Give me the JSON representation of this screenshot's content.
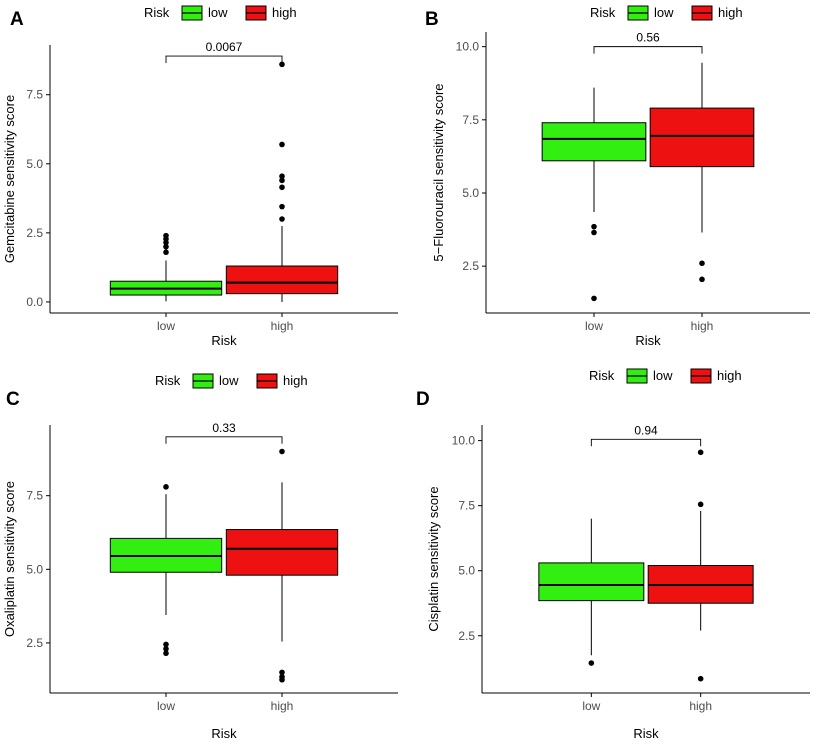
{
  "legend": {
    "title": "Risk",
    "items": [
      {
        "label": "low",
        "color": "#33ee11"
      },
      {
        "label": "high",
        "color": "#ee1111"
      }
    ]
  },
  "chart_data": [
    {
      "panel": "A",
      "type": "boxplot",
      "xlabel": "Risk",
      "ylabel": "Gemcitabine sensitivity score",
      "categories": [
        "low",
        "high"
      ],
      "ylim": [
        -0.4,
        9.3
      ],
      "yticks": [
        0.0,
        2.5,
        5.0,
        7.5
      ],
      "ytick_labels": [
        "0.0",
        "2.5",
        "5.0",
        "7.5"
      ],
      "p_value": "0.0067",
      "bracket_y": 8.9,
      "boxes": [
        {
          "group": "low",
          "q1": 0.25,
          "median": 0.48,
          "q3": 0.75,
          "whisker_low": 0.02,
          "whisker_high": 1.5,
          "outliers": [
            1.8,
            2.0,
            2.15,
            2.28,
            2.4
          ]
        },
        {
          "group": "high",
          "q1": 0.3,
          "median": 0.7,
          "q3": 1.3,
          "whisker_low": 0.0,
          "whisker_high": 2.75,
          "outliers": [
            3.0,
            3.45,
            4.15,
            4.4,
            4.55,
            5.7,
            8.6
          ]
        }
      ]
    },
    {
      "panel": "B",
      "type": "boxplot",
      "xlabel": "Risk",
      "ylabel": "5−Fluorouracil sensitivity score",
      "categories": [
        "low",
        "high"
      ],
      "ylim": [
        0.9,
        10.5
      ],
      "yticks": [
        2.5,
        5.0,
        7.5,
        10.0
      ],
      "ytick_labels": [
        "2.5",
        "5.0",
        "7.5",
        "10.0"
      ],
      "p_value": "0.56",
      "bracket_y": 10.0,
      "boxes": [
        {
          "group": "low",
          "q1": 6.1,
          "median": 6.85,
          "q3": 7.4,
          "whisker_low": 4.35,
          "whisker_high": 8.6,
          "outliers": [
            1.4,
            3.65,
            3.85
          ]
        },
        {
          "group": "high",
          "q1": 5.9,
          "median": 6.95,
          "q3": 7.9,
          "whisker_low": 3.65,
          "whisker_high": 9.45,
          "outliers": [
            2.05,
            2.6
          ]
        }
      ]
    },
    {
      "panel": "C",
      "type": "boxplot",
      "xlabel": "Risk",
      "ylabel": "Oxaliplatin sensitivity score",
      "categories": [
        "low",
        "high"
      ],
      "ylim": [
        0.8,
        9.9
      ],
      "yticks": [
        2.5,
        5.0,
        7.5
      ],
      "ytick_labels": [
        "2.5",
        "5.0",
        "7.5"
      ],
      "p_value": "0.33",
      "bracket_y": 9.5,
      "boxes": [
        {
          "group": "low",
          "q1": 4.9,
          "median": 5.45,
          "q3": 6.05,
          "whisker_low": 3.45,
          "whisker_high": 7.55,
          "outliers": [
            2.15,
            2.3,
            2.45,
            7.8
          ]
        },
        {
          "group": "high",
          "q1": 4.8,
          "median": 5.7,
          "q3": 6.35,
          "whisker_low": 2.55,
          "whisker_high": 7.95,
          "outliers": [
            1.25,
            1.35,
            1.5,
            9.0
          ]
        }
      ]
    },
    {
      "panel": "D",
      "type": "boxplot",
      "xlabel": "Risk",
      "ylabel": "Cisplatin sensitivity score",
      "categories": [
        "low",
        "high"
      ],
      "ylim": [
        0.3,
        10.6
      ],
      "yticks": [
        2.5,
        5.0,
        7.5,
        10.0
      ],
      "ytick_labels": [
        "2.5",
        "5.0",
        "7.5",
        "10.0"
      ],
      "p_value": "0.94",
      "bracket_y": 10.05,
      "boxes": [
        {
          "group": "low",
          "q1": 3.85,
          "median": 4.45,
          "q3": 5.3,
          "whisker_low": 1.75,
          "whisker_high": 7.0,
          "outliers": [
            1.45
          ]
        },
        {
          "group": "high",
          "q1": 3.75,
          "median": 4.45,
          "q3": 5.2,
          "whisker_low": 2.7,
          "whisker_high": 7.3,
          "outliers": [
            0.85,
            7.55,
            9.55
          ]
        }
      ]
    }
  ]
}
